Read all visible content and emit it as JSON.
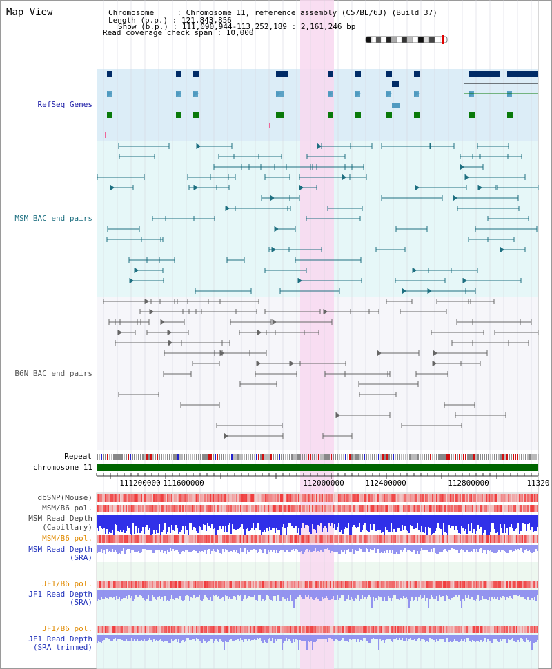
{
  "header": {
    "title": "Map View",
    "info_lines": [
      "Chromosome     : Chromosome 11, reference assembly (C57BL/6J) (Build 37)",
      "Length (b.p.) : 121,843,856",
      "Show (b.p.) : 111,090,944-113,252,189 : 2,161,246 bp",
      "Read coverage check span : 10,000"
    ]
  },
  "tracks": {
    "refseq": "RefSeq Genes",
    "msm_bac": "MSM BAC end pairs",
    "b6n_bac": "B6N BAC end pairs",
    "repeat": "Repeat",
    "chromosome": "chromosome 11",
    "dbsnp": "dbSNP(Mouse)",
    "msm_b6_pol_1": "MSM/B6 pol.",
    "msm_depth_cap_1": "MSM Read Depth",
    "msm_depth_cap_2": "(Capillary)",
    "msm_b6_pol_2": "MSM/B6 pol.",
    "msm_depth_sra_1": "MSM Read Depth",
    "msm_depth_sra_2": "(SRA)",
    "jf1_b6_pol_1": "JF1/B6 pol.",
    "jf1_depth_sra_1": "JF1 Read Depth",
    "jf1_depth_sra_2": "(SRA)",
    "jf1_b6_pol_2": "JF1/B6 pol.",
    "jf1_depth_trim_1": "JF1 Read Depth",
    "jf1_depth_trim_2": "(SRA trimmed)"
  },
  "axis": {
    "ticks": [
      "111200000",
      "111600000",
      "112000000",
      "112400000",
      "112800000",
      "11320"
    ]
  },
  "colors": {
    "refseq_bg": "#dcedf7",
    "msm_bg": "#e6f7f8",
    "b6n_bg": "#f6f6fa",
    "highlight": "#f8d8f0",
    "chromosome": "#006600",
    "msm_feature": "#1d6f80",
    "b6n_feature": "#666666",
    "gene_dark": "#002b66",
    "gene_mid": "#4f9ac0",
    "gene_green": "#0a7a0a",
    "snp_red": "#ee3333",
    "depth_blue": "#1a1ae6",
    "depth_light": "#8888ee"
  }
}
